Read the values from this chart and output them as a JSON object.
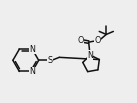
{
  "bg_color": "#eeeeee",
  "line_color": "#111111",
  "line_width": 1.1,
  "font_size": 5.8,
  "xlim": [
    0,
    10
  ],
  "ylim": [
    1.5,
    7.5
  ]
}
